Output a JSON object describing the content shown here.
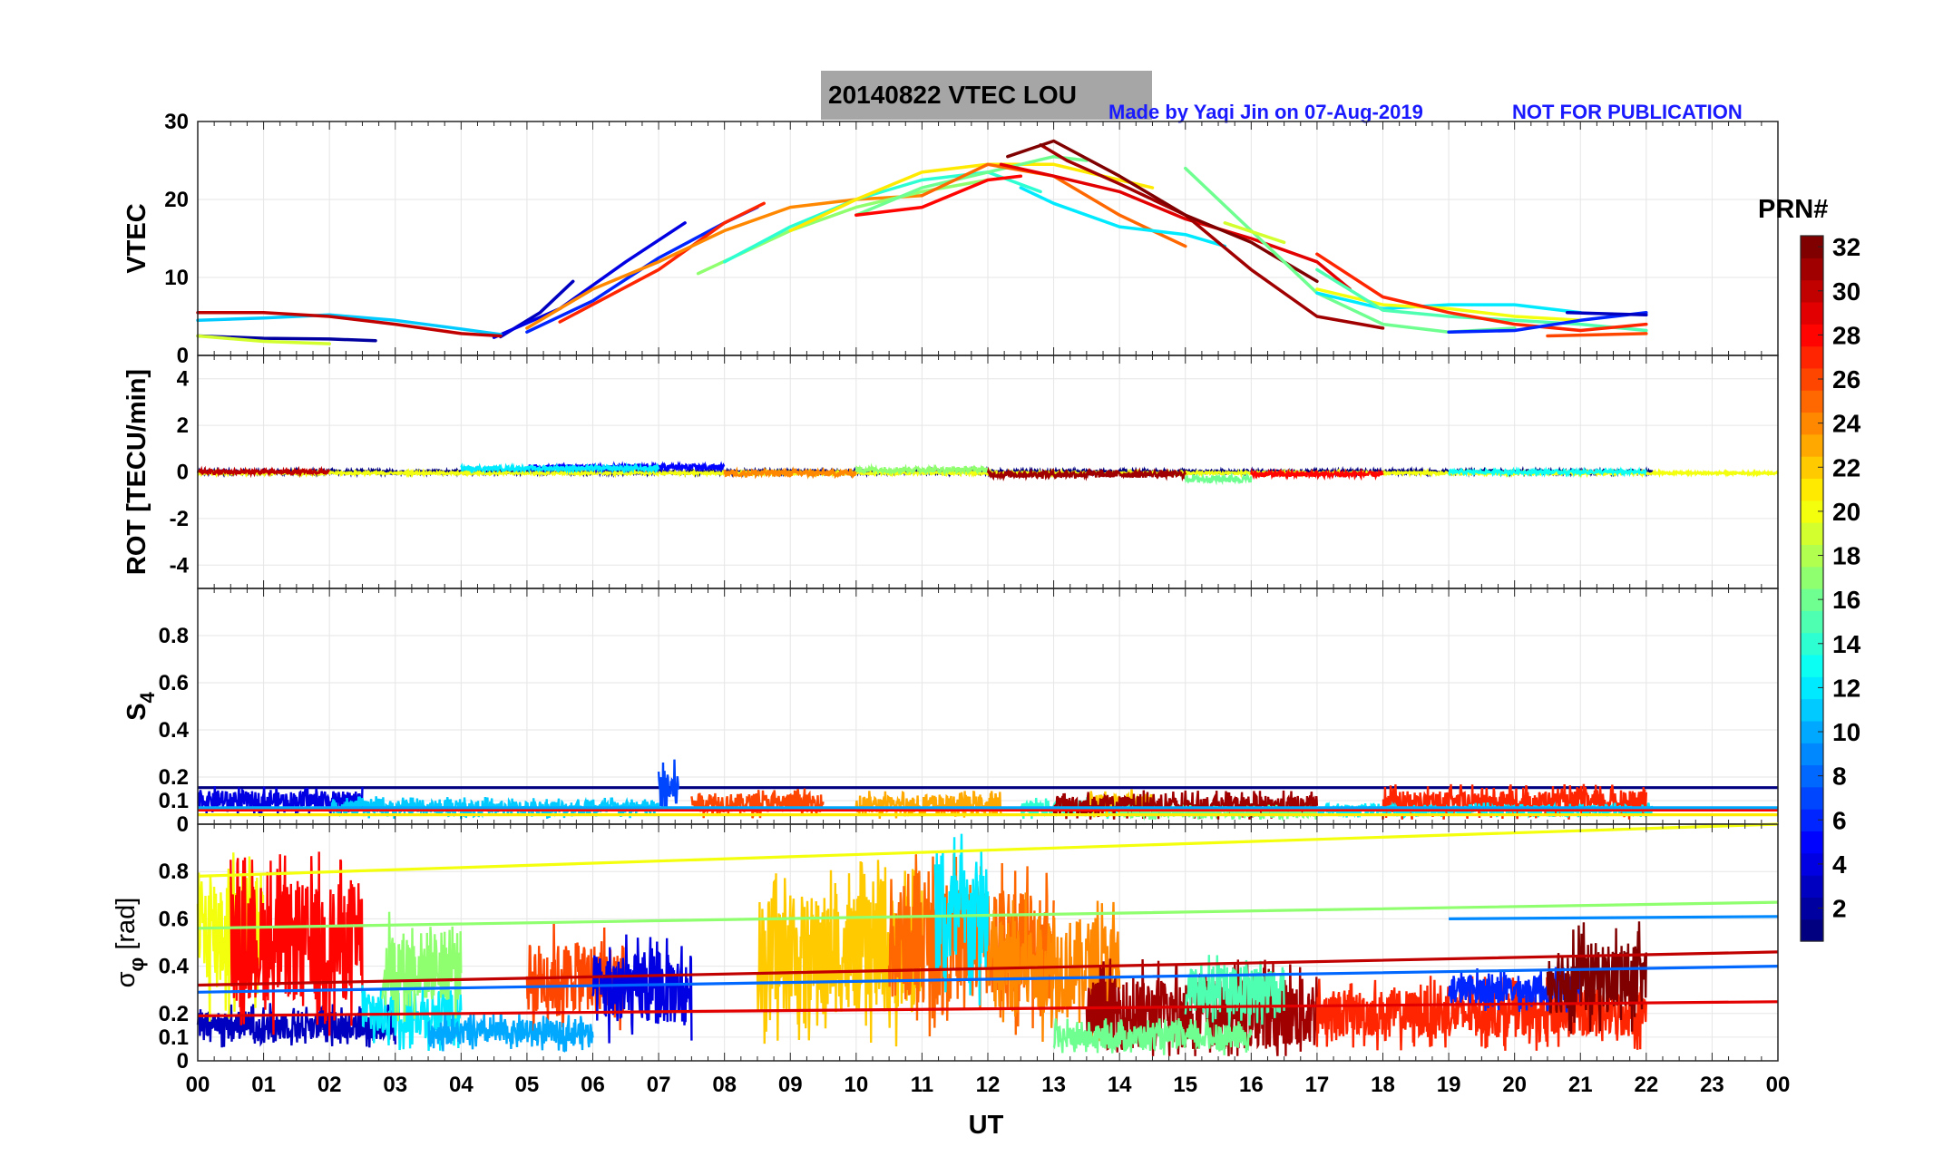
{
  "figure": {
    "title": "20140822    VTEC  LOU",
    "credit": "Made by Yaqi Jin on 07-Aug-2019",
    "warning": "NOT FOR PUBLICATION",
    "xlabel": "UT",
    "title_bg": "#a6a6a6",
    "note_color": "#1a1aff"
  },
  "chart_data": {
    "type": "line",
    "x_ticks": [
      "00",
      "01",
      "02",
      "03",
      "04",
      "05",
      "06",
      "07",
      "08",
      "09",
      "10",
      "11",
      "12",
      "13",
      "14",
      "15",
      "16",
      "17",
      "18",
      "19",
      "20",
      "21",
      "22",
      "23",
      "00"
    ],
    "xlim_hours": [
      0,
      24
    ],
    "colorbar": {
      "label": "PRN#",
      "range": [
        1,
        32
      ],
      "ticks": [
        "2",
        "4",
        "6",
        "8",
        "10",
        "12",
        "14",
        "16",
        "18",
        "20",
        "22",
        "24",
        "26",
        "28",
        "30",
        "32"
      ],
      "colormap": "jet"
    },
    "panels": [
      {
        "key": "vtec",
        "ylabel": "VTEC",
        "ylim": [
          0,
          30
        ],
        "yticks": [
          "0",
          "10",
          "20",
          "30"
        ],
        "series": [
          {
            "prn": 2,
            "x": [
              0,
              1,
              2,
              2.7
            ],
            "y": [
              2.5,
              2.2,
              2.1,
              1.9
            ]
          },
          {
            "prn": 3,
            "x": [
              4.6,
              5.2,
              5.7
            ],
            "y": [
              2.4,
              5.5,
              9.5
            ]
          },
          {
            "prn": 4,
            "x": [
              4.5,
              5.5,
              6.5,
              7.4
            ],
            "y": [
              2.3,
              6,
              12,
              17
            ]
          },
          {
            "prn": 6,
            "x": [
              5,
              6,
              7,
              8,
              8.5
            ],
            "y": [
              3,
              7,
              12.5,
              17,
              19
            ]
          },
          {
            "prn": 11,
            "x": [
              0,
              1,
              2,
              3,
              4,
              4.6
            ],
            "y": [
              4.5,
              4.8,
              5.2,
              4.5,
              3.4,
              2.7
            ]
          },
          {
            "prn": 19,
            "x": [
              0,
              1,
              2
            ],
            "y": [
              2.5,
              1.8,
              1.5
            ]
          },
          {
            "prn": 30,
            "x": [
              0,
              1,
              2,
              3,
              4,
              4.6
            ],
            "y": [
              5.5,
              5.5,
              5,
              4,
              2.8,
              2.5
            ]
          },
          {
            "prn": 27,
            "x": [
              5.5,
              7,
              8,
              8.6
            ],
            "y": [
              4.3,
              11,
              17,
              19.5
            ]
          },
          {
            "prn": 24,
            "x": [
              5,
              6,
              7,
              8,
              9,
              10,
              11
            ],
            "y": [
              3.5,
              8.5,
              12,
              16,
              19,
              20,
              20.5
            ]
          },
          {
            "prn": 17,
            "x": [
              7.6,
              9,
              10,
              11,
              12
            ],
            "y": [
              10.5,
              16,
              19,
              21,
              22.5
            ]
          },
          {
            "prn": 14,
            "x": [
              8,
              9,
              10,
              11,
              12,
              12.8
            ],
            "y": [
              12,
              16.5,
              20,
              22.5,
              23.5,
              21
            ]
          },
          {
            "prn": 21,
            "x": [
              9,
              10,
              11,
              12,
              13,
              14,
              14.5
            ],
            "y": [
              16,
              20,
              23.5,
              24.5,
              24.5,
              22.5,
              21.5
            ]
          },
          {
            "prn": 16,
            "x": [
              10,
              11,
              12,
              13,
              13.5
            ],
            "y": [
              18,
              21.5,
              23.5,
              25.5,
              25
            ]
          },
          {
            "prn": 25,
            "x": [
              11,
              12,
              13,
              14,
              15
            ],
            "y": [
              20.5,
              24.5,
              23,
              18,
              14
            ]
          },
          {
            "prn": 28,
            "x": [
              10,
              11,
              12,
              12.5
            ],
            "y": [
              18,
              19,
              22.5,
              23
            ]
          },
          {
            "prn": 12,
            "x": [
              12.5,
              13,
              14,
              15,
              15.6
            ],
            "y": [
              21.5,
              19.5,
              16.5,
              15.5,
              14
            ]
          },
          {
            "prn": 29,
            "x": [
              12.2,
              13,
              14,
              15,
              16,
              17,
              17.5
            ],
            "y": [
              24.5,
              23,
              21,
              17.5,
              15,
              12,
              8.5
            ]
          },
          {
            "prn": 31,
            "x": [
              12.8,
              13.2,
              14,
              15,
              16,
              17,
              18
            ],
            "y": [
              27,
              25,
              22,
              18,
              11,
              5,
              3.5
            ]
          },
          {
            "prn": 32,
            "x": [
              12.3,
              13,
              14,
              15,
              16,
              17
            ],
            "y": [
              25.5,
              27.5,
              23,
              18,
              14.5,
              9.5
            ]
          },
          {
            "prn": 16,
            "x": [
              15,
              16,
              17,
              18,
              19,
              20
            ],
            "y": [
              24,
              16,
              8,
              4,
              3,
              3.5
            ]
          },
          {
            "prn": 19,
            "x": [
              15.6,
              16.5
            ],
            "y": [
              17,
              14.5
            ]
          },
          {
            "prn": 12,
            "x": [
              17,
              18,
              19,
              20,
              21
            ],
            "y": [
              8,
              6,
              6.5,
              6.5,
              5.5
            ]
          },
          {
            "prn": 20,
            "x": [
              17,
              18,
              19,
              20,
              21
            ],
            "y": [
              8.5,
              6.5,
              6,
              5,
              4.5
            ]
          },
          {
            "prn": 15,
            "x": [
              17,
              18,
              19,
              20,
              21,
              22
            ],
            "y": [
              11,
              5.8,
              5,
              4.5,
              4,
              3.2
            ]
          },
          {
            "prn": 27,
            "x": [
              17,
              18,
              19,
              20,
              21,
              22
            ],
            "y": [
              13,
              7.5,
              5.5,
              4,
              3.2,
              4
            ]
          },
          {
            "prn": 26,
            "x": [
              20.5,
              22
            ],
            "y": [
              2.5,
              2.8
            ]
          },
          {
            "prn": 6,
            "x": [
              19,
              20,
              21,
              22
            ],
            "y": [
              3,
              3.2,
              4.5,
              5.5
            ]
          },
          {
            "prn": 3,
            "x": [
              20.8,
              22
            ],
            "y": [
              5.5,
              5.2
            ]
          }
        ]
      },
      {
        "key": "rot",
        "ylabel": "ROT [TECU/min]",
        "ylim": [
          -5,
          5
        ],
        "yticks": [
          "-4",
          "-2",
          "0",
          "2",
          "4"
        ],
        "series": [
          {
            "prn": 1,
            "x": [
              0,
              22.1
            ],
            "noise": 0.08,
            "base": 0
          },
          {
            "prn": 20,
            "x": [
              0,
              24
            ],
            "noise": 0.05,
            "base": -0.05
          },
          {
            "prn": 5,
            "x": [
              5,
              8
            ],
            "noise": 0.12,
            "base": 0.2
          },
          {
            "prn": 12,
            "x": [
              4,
              7
            ],
            "noise": 0.1,
            "base": 0.15
          },
          {
            "prn": 24,
            "x": [
              8,
              10
            ],
            "noise": 0.15,
            "base": -0.05
          },
          {
            "prn": 17,
            "x": [
              10,
              12
            ],
            "noise": 0.12,
            "base": 0.1
          },
          {
            "prn": 31,
            "x": [
              12,
              15
            ],
            "noise": 0.15,
            "base": -0.1
          },
          {
            "prn": 16,
            "x": [
              15,
              16
            ],
            "noise": 0.15,
            "base": -0.3
          },
          {
            "prn": 28,
            "x": [
              16,
              18
            ],
            "noise": 0.12,
            "base": -0.1
          },
          {
            "prn": 30,
            "x": [
              0,
              2
            ],
            "noise": 0.1,
            "base": 0
          },
          {
            "prn": 13,
            "x": [
              19,
              22
            ],
            "noise": 0.08,
            "base": 0
          }
        ]
      },
      {
        "key": "s4",
        "ylabel": "S",
        "ylabel_sub": "4",
        "ylim": [
          0,
          1
        ],
        "yticks": [
          "0",
          "0.1",
          "0.2",
          "0.4",
          "0.6",
          "0.8"
        ],
        "series": [
          {
            "prn": 1,
            "x": [
              0,
              24
            ],
            "noise": 0,
            "base": 0.155
          },
          {
            "prn": 4,
            "x": [
              0,
              2.5
            ],
            "noise": 0.04,
            "base": 0.1
          },
          {
            "prn": 11,
            "x": [
              2,
              7
            ],
            "noise": 0.03,
            "base": 0.07
          },
          {
            "prn": 7,
            "x": [
              7,
              7.3
            ],
            "noise": 0.08,
            "base": 0.15
          },
          {
            "prn": 26,
            "x": [
              7.5,
              9.5
            ],
            "noise": 0.04,
            "base": 0.09
          },
          {
            "prn": 23,
            "x": [
              10,
              12.2
            ],
            "noise": 0.04,
            "base": 0.08
          },
          {
            "prn": 14,
            "x": [
              12.5,
              14
            ],
            "noise": 0.03,
            "base": 0.07
          },
          {
            "prn": 22,
            "x": [
              13.5,
              14.5
            ],
            "noise": 0.04,
            "base": 0.09
          },
          {
            "prn": 31,
            "x": [
              13,
              17
            ],
            "noise": 0.04,
            "base": 0.08
          },
          {
            "prn": 16,
            "x": [
              14,
              17
            ],
            "noise": 0.02,
            "base": 0.05
          },
          {
            "prn": 27,
            "x": [
              18,
              22
            ],
            "noise": 0.05,
            "base": 0.09
          },
          {
            "prn": 12,
            "x": [
              17,
              22.1
            ],
            "noise": 0.02,
            "base": 0.06
          },
          {
            "prn": 28,
            "x": [
              0,
              24
            ],
            "noise": 0,
            "base": 0.06
          },
          {
            "prn": 10,
            "x": [
              0,
              24
            ],
            "noise": 0,
            "base": 0.07
          },
          {
            "prn": 21,
            "x": [
              0,
              24
            ],
            "noise": 0,
            "base": 0.04
          }
        ]
      },
      {
        "key": "sigphi",
        "ylabel": "σ",
        "ylabel_sub": "φ",
        "ylabel_tail": " [rad]",
        "ylim": [
          0,
          1
        ],
        "yticks": [
          "0",
          "0.1",
          "0.2",
          "0.4",
          "0.6",
          "0.8"
        ],
        "series": [
          {
            "prn": 3,
            "x": [
              0,
              3
            ],
            "noise": 0.06,
            "base": 0.15
          },
          {
            "prn": 20,
            "x": [
              0,
              1
            ],
            "noise": 0.25,
            "base": 0.55
          },
          {
            "prn": 28,
            "x": [
              0.5,
              2.5
            ],
            "noise": 0.25,
            "base": 0.5
          },
          {
            "prn": 12,
            "x": [
              2.5,
              4
            ],
            "noise": 0.1,
            "base": 0.2
          },
          {
            "prn": 17,
            "x": [
              2.8,
              4
            ],
            "noise": 0.15,
            "base": 0.4
          },
          {
            "prn": 26,
            "x": [
              5,
              6.5
            ],
            "noise": 0.15,
            "base": 0.35
          },
          {
            "prn": 4,
            "x": [
              6,
              7.5
            ],
            "noise": 0.15,
            "base": 0.3
          },
          {
            "prn": 10,
            "x": [
              3.5,
              6
            ],
            "noise": 0.05,
            "base": 0.12
          },
          {
            "prn": 22,
            "x": [
              8.5,
              11
            ],
            "noise": 0.25,
            "base": 0.45
          },
          {
            "prn": 25,
            "x": [
              10.5,
              13
            ],
            "noise": 0.25,
            "base": 0.5
          },
          {
            "prn": 12,
            "x": [
              11.2,
              12
            ],
            "noise": 0.25,
            "base": 0.6
          },
          {
            "prn": 24,
            "x": [
              12,
              14
            ],
            "noise": 0.2,
            "base": 0.4
          },
          {
            "prn": 31,
            "x": [
              13.5,
              17
            ],
            "noise": 0.15,
            "base": 0.2
          },
          {
            "prn": 15,
            "x": [
              15,
              16.5
            ],
            "noise": 0.1,
            "base": 0.3
          },
          {
            "prn": 27,
            "x": [
              17,
              22
            ],
            "noise": 0.1,
            "base": 0.2
          },
          {
            "prn": 6,
            "x": [
              19,
              21
            ],
            "noise": 0.06,
            "base": 0.3
          },
          {
            "prn": 32,
            "x": [
              20.5,
              22
            ],
            "noise": 0.15,
            "base": 0.35
          },
          {
            "prn": 16,
            "x": [
              13,
              16
            ],
            "noise": 0.05,
            "base": 0.1
          },
          {
            "prn": 20,
            "x": [
              0,
              24
            ],
            "noise": 0,
            "base": 0.78,
            "end": 1.0
          },
          {
            "prn": 17,
            "x": [
              0,
              24
            ],
            "noise": 0,
            "base": 0.56,
            "end": 0.67
          },
          {
            "prn": 30,
            "x": [
              0,
              24
            ],
            "noise": 0,
            "base": 0.32,
            "end": 0.46
          },
          {
            "prn": 8,
            "x": [
              0,
              24
            ],
            "noise": 0,
            "base": 0.29,
            "end": 0.4
          },
          {
            "prn": 29,
            "x": [
              0,
              24
            ],
            "noise": 0,
            "base": 0.19,
            "end": 0.25
          },
          {
            "prn": 9,
            "x": [
              19,
              24
            ],
            "noise": 0,
            "base": 0.6,
            "end": 0.61
          }
        ]
      }
    ]
  }
}
